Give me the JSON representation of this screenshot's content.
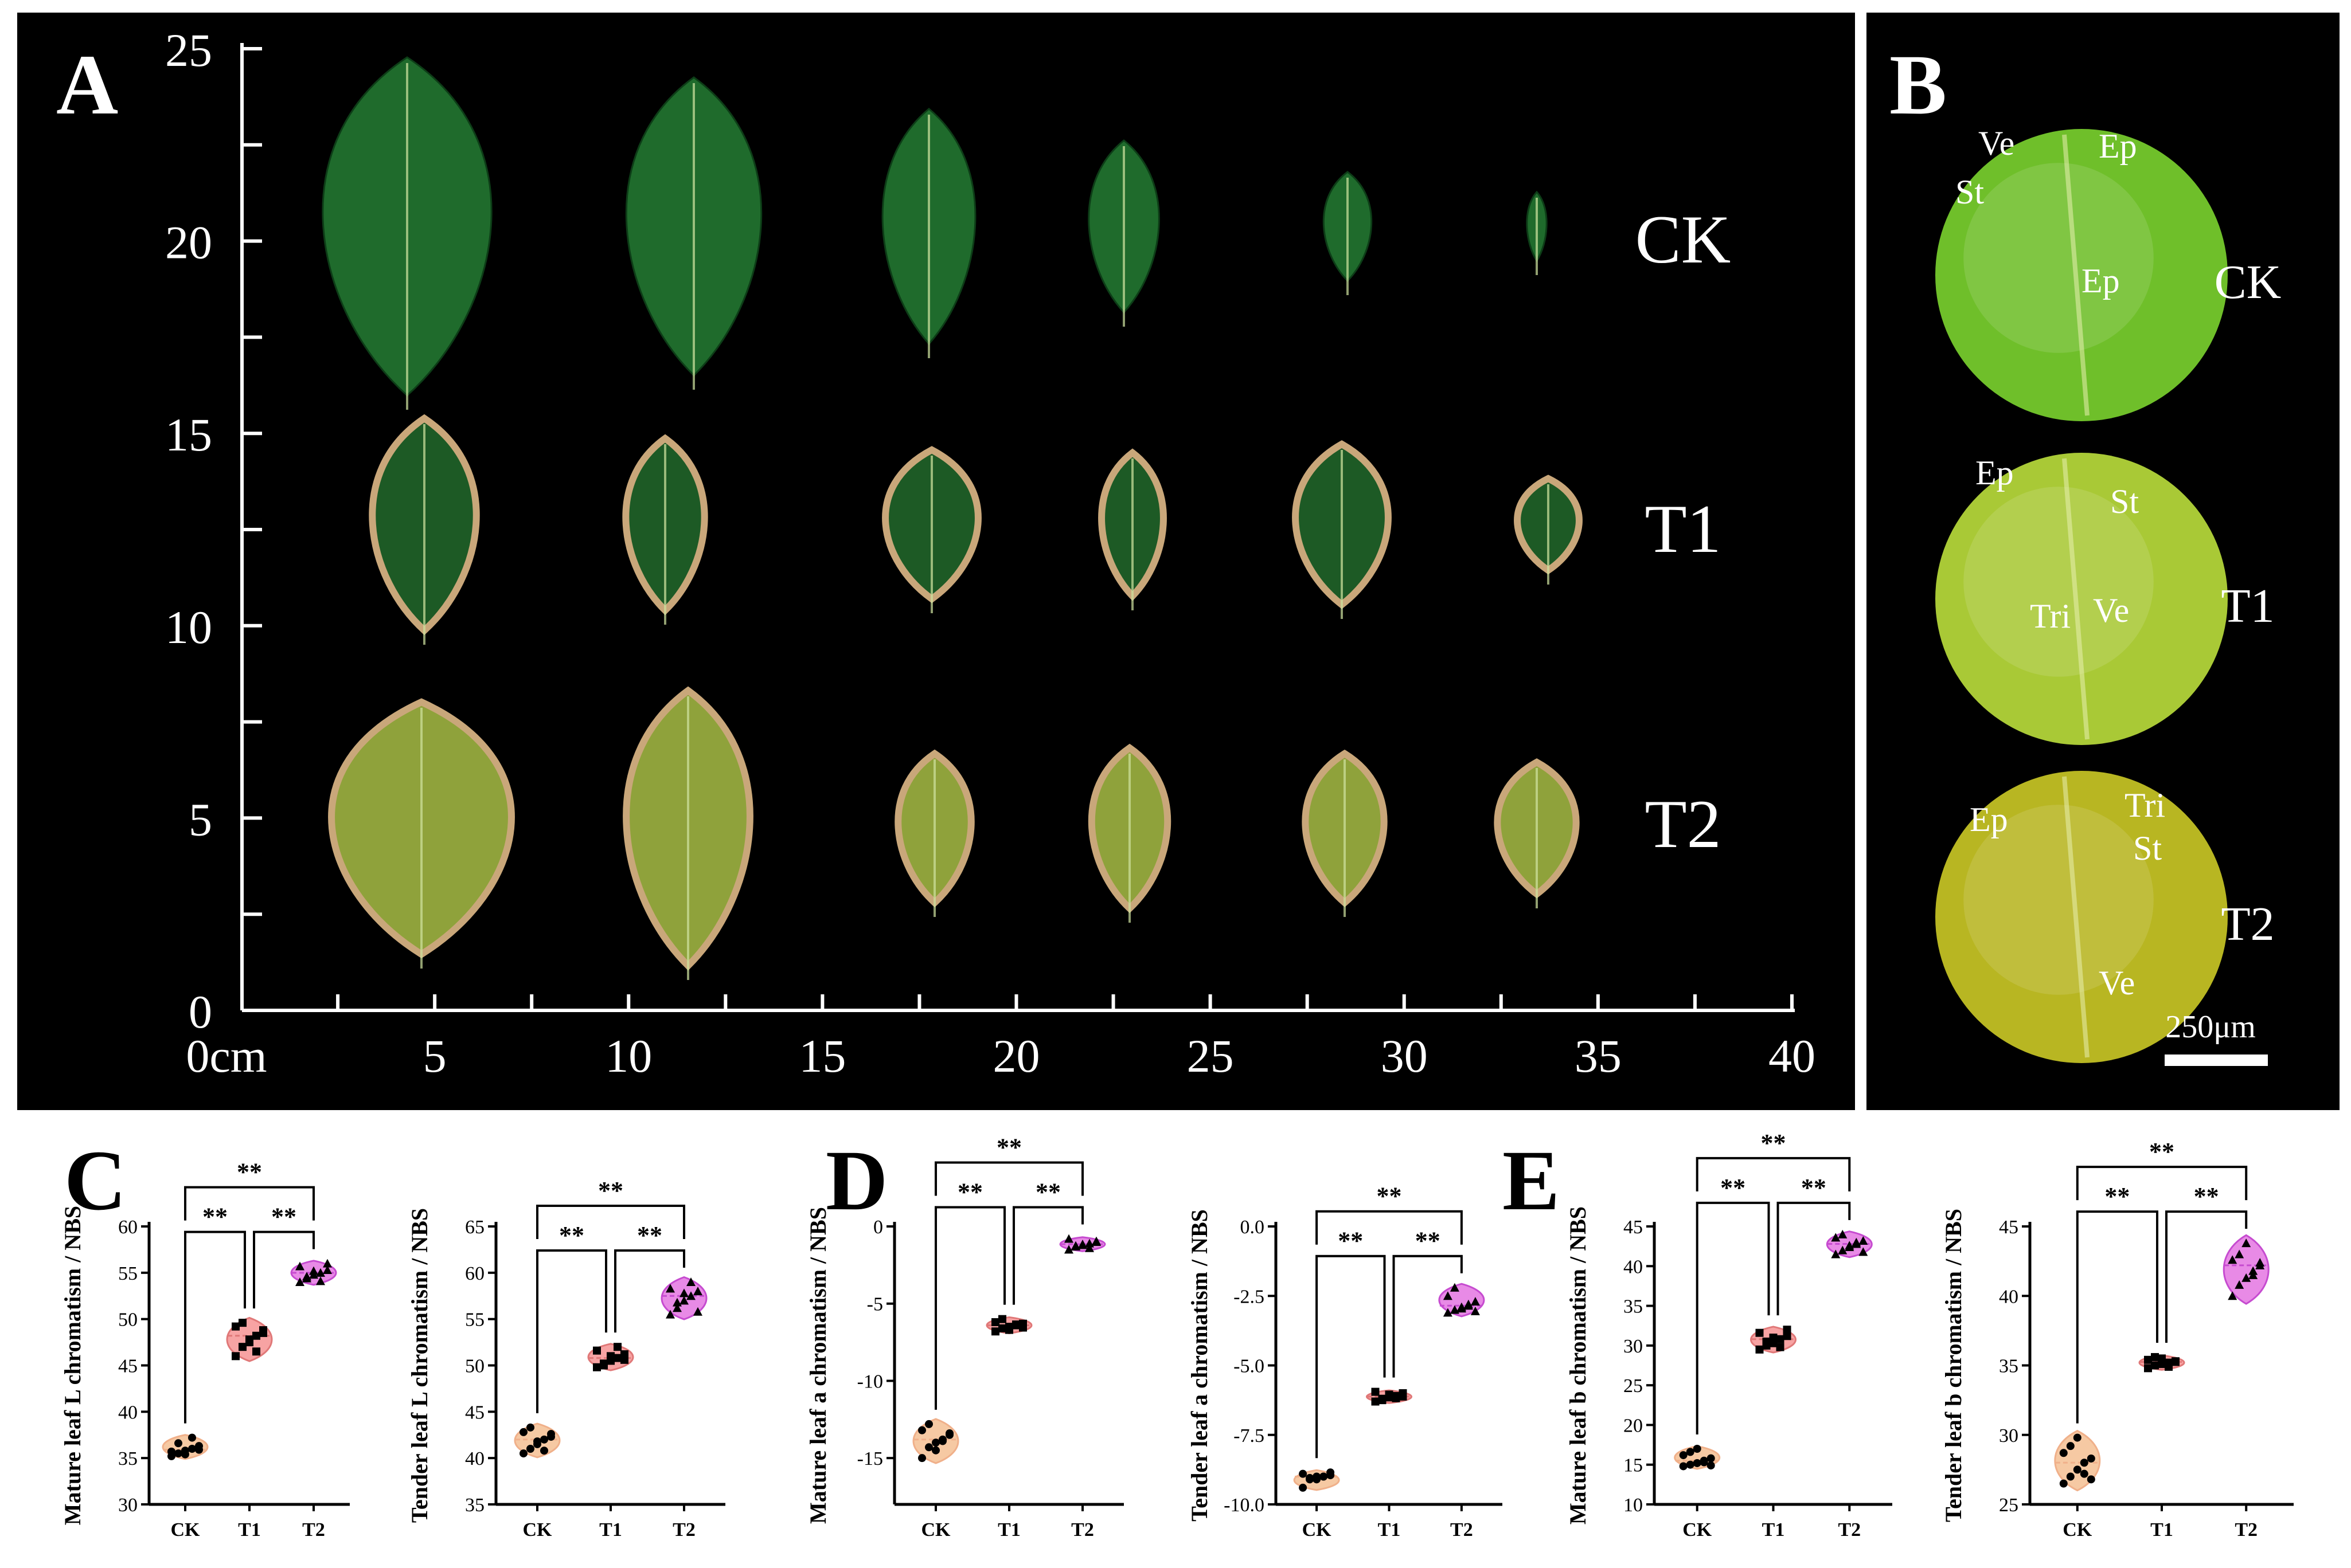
{
  "panels": {
    "A": {
      "label": "A",
      "yticks": [
        "0",
        "5",
        "10",
        "15",
        "20",
        "25"
      ],
      "xticks": [
        "0cm",
        "5",
        "10",
        "15",
        "20",
        "25",
        "30",
        "35",
        "40"
      ],
      "rows": [
        "CK",
        "T1",
        "T2"
      ],
      "leaf_color_groups": {
        "CK": {
          "fill": "#1f6b2c",
          "edge": "#0d3d17"
        },
        "T1": {
          "fill": "#1d5a25",
          "edge": "#c9a77a"
        },
        "T2": {
          "fill": "#8fa23b",
          "edge": "#c9a77a"
        }
      }
    },
    "B": {
      "label": "B",
      "rows": [
        {
          "name": "CK",
          "tags": [
            "Ve",
            "Ep",
            "St",
            "Ep"
          ],
          "color": "#6fbf2a"
        },
        {
          "name": "T1",
          "tags": [
            "Ep",
            "St",
            "Ve",
            "Tri"
          ],
          "color": "#a9c936"
        },
        {
          "name": "T2",
          "tags": [
            "Tri",
            "Ep",
            "St",
            "Ve"
          ],
          "color": "#b8b622"
        }
      ],
      "scalebar": "250μm"
    },
    "C": {
      "label": "C"
    },
    "D": {
      "label": "D"
    },
    "E": {
      "label": "E"
    }
  },
  "significance": "**",
  "colors": {
    "CK": "#f6c9a3",
    "T1": "#f7a3a3",
    "T2": "#e88ae6",
    "CK_edge": "#f0b08a",
    "T1_edge": "#e07878",
    "T2_edge": "#c64bd0"
  },
  "chart_data": [
    {
      "type": "violin",
      "panel": "C",
      "ylabel": "Mature leaf L chromatism / NBS",
      "categories": [
        "CK",
        "T1",
        "T2"
      ],
      "ylim": [
        30,
        60
      ],
      "yticks": [
        30,
        35,
        40,
        45,
        50,
        55,
        60
      ],
      "values": [
        [
          35.2,
          35.5,
          35.8,
          36.0,
          36.3,
          35.7,
          36.6,
          35.4,
          37.2,
          35.9
        ],
        [
          46.0,
          47.0,
          47.5,
          48.2,
          48.8,
          49.2,
          49.6,
          47.8,
          46.5,
          48.5
        ],
        [
          54.0,
          54.4,
          54.8,
          55.0,
          55.3,
          55.7,
          54.6,
          55.2,
          54.1,
          56.0
        ]
      ],
      "brackets": [
        [
          "CK",
          "T1",
          "**"
        ],
        [
          "T1",
          "T2",
          "**"
        ],
        [
          "CK",
          "T2",
          "**"
        ]
      ]
    },
    {
      "type": "violin",
      "panel": "C",
      "ylabel": "Tender leaf L chromatism / NBS",
      "categories": [
        "CK",
        "T1",
        "T2"
      ],
      "ylim": [
        35,
        65
      ],
      "yticks": [
        35,
        40,
        45,
        50,
        55,
        60,
        65
      ],
      "values": [
        [
          40.5,
          41.0,
          41.5,
          42.0,
          42.3,
          42.8,
          43.3,
          41.8,
          40.8,
          42.6
        ],
        [
          49.8,
          50.2,
          50.5,
          50.8,
          51.2,
          51.6,
          50.0,
          51.0,
          52.0,
          50.6
        ],
        [
          55.5,
          56.2,
          57.0,
          57.5,
          58.0,
          58.3,
          56.8,
          57.8,
          59.0,
          55.8
        ]
      ],
      "brackets": [
        [
          "CK",
          "T1",
          "**"
        ],
        [
          "T1",
          "T2",
          "**"
        ],
        [
          "CK",
          "T2",
          "**"
        ]
      ]
    },
    {
      "type": "violin",
      "panel": "D",
      "ylabel": "Mature leaf a chromatism / NBS",
      "categories": [
        "CK",
        "T1",
        "T2"
      ],
      "ylim": [
        -18,
        0
      ],
      "yticks": [
        -15,
        -10,
        -5,
        0
      ],
      "ytick_labels": [
        "-15",
        "-10",
        "-5",
        "0"
      ],
      "values": [
        [
          -15.0,
          -14.3,
          -14.0,
          -13.8,
          -13.5,
          -13.2,
          -12.8,
          -14.5,
          -13.9,
          -13.4
        ],
        [
          -6.8,
          -6.6,
          -6.5,
          -6.4,
          -6.3,
          -6.2,
          -6.0,
          -6.7,
          -6.35,
          -6.55
        ],
        [
          -1.5,
          -1.3,
          -1.2,
          -1.1,
          -1.0,
          -0.8,
          -1.25,
          -1.15,
          -1.4,
          -0.95
        ]
      ],
      "brackets": [
        [
          "CK",
          "T1",
          "**"
        ],
        [
          "T1",
          "T2",
          "**"
        ],
        [
          "CK",
          "T2",
          "**"
        ]
      ]
    },
    {
      "type": "violin",
      "panel": "D",
      "ylabel": "Tender leaf a chromatism / NBS",
      "categories": [
        "CK",
        "T1",
        "T2"
      ],
      "ylim": [
        -10,
        0
      ],
      "yticks": [
        -10,
        -7.5,
        -5,
        -2.5,
        0
      ],
      "ytick_labels": [
        "-10.0",
        "-7.5",
        "-5.0",
        "-2.5",
        "0.0"
      ],
      "values": [
        [
          -9.4,
          -9.1,
          -9.0,
          -9.0,
          -8.95,
          -8.9,
          -9.05,
          -9.1,
          -9.0,
          -8.85
        ],
        [
          -6.3,
          -6.2,
          -6.15,
          -6.1,
          -6.0,
          -5.95,
          -6.25,
          -6.05,
          -6.18,
          -6.12
        ],
        [
          -3.1,
          -3.0,
          -2.9,
          -2.8,
          -2.7,
          -2.5,
          -2.2,
          -2.95,
          -2.85,
          -3.05
        ]
      ],
      "brackets": [
        [
          "CK",
          "T1",
          "**"
        ],
        [
          "T1",
          "T2",
          "**"
        ],
        [
          "CK",
          "T2",
          "**"
        ]
      ]
    },
    {
      "type": "violin",
      "panel": "E",
      "ylabel": "Mature leaf b chromatism / NBS",
      "categories": [
        "CK",
        "T1",
        "T2"
      ],
      "ylim": [
        10,
        45
      ],
      "yticks": [
        10,
        15,
        20,
        25,
        30,
        35,
        40,
        45
      ],
      "values": [
        [
          14.8,
          15.0,
          15.2,
          15.5,
          15.8,
          16.2,
          16.6,
          17.0,
          15.3,
          14.9
        ],
        [
          29.5,
          30.0,
          30.3,
          30.8,
          31.2,
          31.6,
          30.5,
          31.0,
          29.8,
          32.0
        ],
        [
          41.5,
          42.0,
          42.4,
          42.8,
          43.2,
          43.6,
          44.0,
          42.6,
          43.0,
          41.8
        ]
      ],
      "brackets": [
        [
          "CK",
          "T1",
          "**"
        ],
        [
          "T1",
          "T2",
          "**"
        ],
        [
          "CK",
          "T2",
          "**"
        ]
      ]
    },
    {
      "type": "violin",
      "panel": "E",
      "ylabel": "Tender leaf b chromatism / NBS",
      "categories": [
        "CK",
        "T1",
        "T2"
      ],
      "ylim": [
        25,
        45
      ],
      "yticks": [
        25,
        30,
        35,
        40,
        45
      ],
      "values": [
        [
          26.5,
          27.0,
          27.5,
          28.0,
          28.3,
          28.7,
          29.2,
          29.8,
          27.2,
          26.8
        ],
        [
          34.8,
          35.0,
          35.1,
          35.2,
          35.3,
          35.4,
          35.6,
          35.5,
          34.9,
          35.25
        ],
        [
          40.0,
          40.8,
          41.3,
          41.8,
          42.2,
          42.6,
          43.0,
          43.8,
          41.5,
          42.4
        ]
      ],
      "brackets": [
        [
          "CK",
          "T1",
          "**"
        ],
        [
          "T1",
          "T2",
          "**"
        ],
        [
          "CK",
          "T2",
          "**"
        ]
      ]
    }
  ]
}
